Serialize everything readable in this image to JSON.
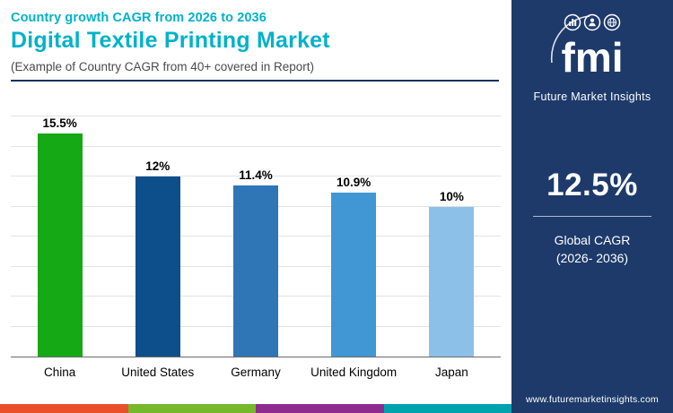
{
  "header": {
    "eyebrow": "Country growth CAGR from 2026 to 2036",
    "title": "Digital Textile Printing Market",
    "subtitle": "(Example of Country CAGR from 40+ covered in Report)"
  },
  "sidebar": {
    "logo_text": "fmi",
    "brand_name": "Future Market Insights",
    "stat": {
      "value": "12.5%",
      "label_line1": "Global CAGR",
      "label_line2": "(2026- 2036)"
    },
    "website": "www.futuremarketinsights.com"
  },
  "chart_data": {
    "type": "bar",
    "title": "Digital Textile Printing Market — Country growth CAGR from 2026 to 2036",
    "categories": [
      "China",
      "United States",
      "Germany",
      "United Kingdom",
      "Japan"
    ],
    "values": [
      15.5,
      12,
      11.4,
      10.9,
      10
    ],
    "value_labels": [
      "15.5%",
      "12%",
      "11.4%",
      "10.9%",
      "10%"
    ],
    "bar_colors": [
      "#15a915",
      "#0d4f8b",
      "#2e76b6",
      "#4097d4",
      "#8cc0e8"
    ],
    "ylim": [
      0,
      16
    ],
    "gridline_count": 8,
    "grid": true,
    "legend": "none"
  },
  "colors": {
    "accent_teal": "#00b2c9",
    "sidebar_navy": "#1d3a6b",
    "rule_navy": "#16305e"
  },
  "footer_strip": {
    "colors": [
      "#e8502b",
      "#76b82a",
      "#8e2b8e",
      "#00a3ad"
    ]
  }
}
